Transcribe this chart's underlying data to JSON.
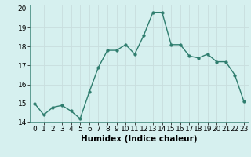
{
  "x": [
    0,
    1,
    2,
    3,
    4,
    5,
    6,
    7,
    8,
    9,
    10,
    11,
    12,
    13,
    14,
    15,
    16,
    17,
    18,
    19,
    20,
    21,
    22,
    23
  ],
  "y": [
    15.0,
    14.4,
    14.8,
    14.9,
    14.6,
    14.2,
    15.6,
    16.9,
    17.8,
    17.8,
    18.1,
    17.6,
    18.6,
    19.8,
    19.8,
    18.1,
    18.1,
    17.5,
    17.4,
    17.6,
    17.2,
    17.2,
    16.5,
    15.1
  ],
  "xlabel": "Humidex (Indice chaleur)",
  "xlim": [
    -0.5,
    23.5
  ],
  "ylim": [
    14.0,
    20.2
  ],
  "yticks": [
    14,
    15,
    16,
    17,
    18,
    19,
    20
  ],
  "xticks": [
    0,
    1,
    2,
    3,
    4,
    5,
    6,
    7,
    8,
    9,
    10,
    11,
    12,
    13,
    14,
    15,
    16,
    17,
    18,
    19,
    20,
    21,
    22,
    23
  ],
  "line_color": "#2e7d6e",
  "bg_color": "#d6f0ef",
  "grid_color": "#c8dede",
  "marker_size": 2.5,
  "line_width": 1.0,
  "tick_fontsize": 6.5,
  "xlabel_fontsize": 7.5
}
